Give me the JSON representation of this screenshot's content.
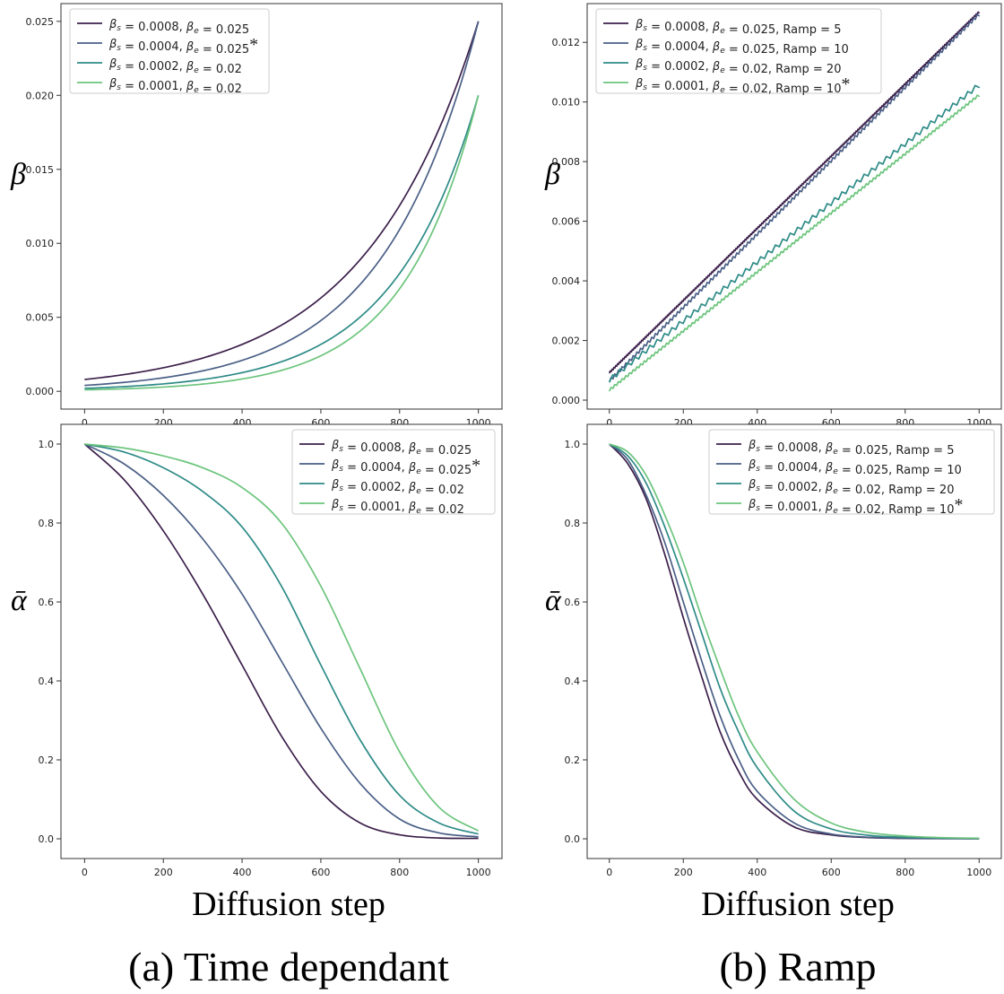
{
  "figure": {
    "xlabel_left": "Diffusion step",
    "xlabel_right": "Diffusion step",
    "caption_left": "(a) Time dependant",
    "caption_right": "(b) Ramp"
  },
  "chart_data": [
    {
      "id": "time-dependant-beta",
      "type": "line",
      "ylabel": "β",
      "xlim": [
        -60,
        1060
      ],
      "ylim": [
        -0.0012,
        0.0262
      ],
      "xticks": [
        0,
        200,
        400,
        600,
        800,
        1000
      ],
      "yticks": [
        0.0,
        0.005,
        0.01,
        0.015,
        0.02,
        0.025
      ],
      "ytick_labels": [
        "0.000",
        "0.005",
        "0.010",
        "0.015",
        "0.020",
        "0.025"
      ],
      "legend_position": "top-left",
      "legend_star_index": 1,
      "legend_star": "*",
      "formula": "beta_s * (beta_e / beta_s)^(t/1000)",
      "series": [
        {
          "name": "βs = 0.0008, βe = 0.025",
          "label": {
            "s": "0.0008",
            "e": "0.025",
            "ramp": ""
          },
          "color": "#3b1f4a",
          "x": [
            0,
            100,
            200,
            300,
            400,
            500,
            600,
            700,
            800,
            900,
            1000
          ],
          "y": [
            0.0008,
            0.00112,
            0.00157,
            0.0022,
            0.00313,
            0.00442,
            0.00624,
            0.00882,
            0.01246,
            0.01765,
            0.025
          ]
        },
        {
          "name": "βs = 0.0004, βe = 0.025",
          "label": {
            "s": "0.0004",
            "e": "0.025",
            "ramp": ""
          },
          "color": "#4a5f86",
          "x": [
            0,
            100,
            200,
            300,
            400,
            500,
            600,
            700,
            800,
            900,
            1000
          ],
          "y": [
            0.0004,
            0.00061,
            0.00091,
            0.00138,
            0.0021,
            0.00316,
            0.00478,
            0.0072,
            0.01088,
            0.01646,
            0.025
          ]
        },
        {
          "name": "βs = 0.0002, βe = 0.02",
          "label": {
            "s": "0.0002",
            "e": "0.02",
            "ramp": ""
          },
          "color": "#2e8b87",
          "x": [
            0,
            100,
            200,
            300,
            400,
            500,
            600,
            700,
            800,
            900,
            1000
          ],
          "y": [
            0.0002,
            0.00032,
            0.0005,
            0.0008,
            0.00126,
            0.002,
            0.00317,
            0.00503,
            0.00796,
            0.01261,
            0.02
          ]
        },
        {
          "name": "βs = 0.0001, βe = 0.02",
          "label": {
            "s": "0.0001",
            "e": "0.02",
            "ramp": ""
          },
          "color": "#6cc47c",
          "x": [
            0,
            100,
            200,
            300,
            400,
            500,
            600,
            700,
            800,
            900,
            1000
          ],
          "y": [
            0.0001,
            0.00017,
            0.00029,
            0.0005,
            0.00083,
            0.00141,
            0.00241,
            0.00408,
            0.00693,
            0.01178,
            0.02
          ]
        }
      ]
    },
    {
      "id": "ramp-beta",
      "type": "line",
      "ylabel": "β",
      "xlim": [
        -60,
        1060
      ],
      "ylim": [
        -0.0003,
        0.0133
      ],
      "xticks": [
        0,
        200,
        400,
        600,
        800,
        1000
      ],
      "yticks": [
        0.0,
        0.002,
        0.004,
        0.006,
        0.008,
        0.01,
        0.012
      ],
      "ytick_labels": [
        "0.000",
        "0.002",
        "0.004",
        "0.006",
        "0.008",
        "0.010",
        "0.012"
      ],
      "legend_position": "top-left",
      "legend_star_index": 3,
      "legend_star": "*",
      "formula": "staircase ramp from beta_s upward; steps every Ramp diffusion steps",
      "series": [
        {
          "name": "βs = 0.0008, βe = 0.025, Ramp = 5",
          "label": {
            "s": "0.0008",
            "e": "0.025",
            "ramp": "Ramp = 5"
          },
          "color": "#3b1f4a",
          "x": [
            0,
            1000
          ],
          "y": [
            0.0009,
            0.013
          ],
          "ramp": 5
        },
        {
          "name": "βs = 0.0004, βe = 0.025, Ramp = 10",
          "label": {
            "s": "0.0004",
            "e": "0.025",
            "ramp": "Ramp = 10"
          },
          "color": "#4a5f86",
          "x": [
            0,
            1000
          ],
          "y": [
            0.0006,
            0.0129
          ],
          "ramp": 10
        },
        {
          "name": "βs = 0.0002, βe = 0.02, Ramp = 20",
          "label": {
            "s": "0.0002",
            "e": "0.02",
            "ramp": "Ramp = 20"
          },
          "color": "#2e8b87",
          "x": [
            0,
            1000
          ],
          "y": [
            0.0006,
            0.0105
          ],
          "ramp": 20
        },
        {
          "name": "βs = 0.0001, βe = 0.02, Ramp = 10",
          "label": {
            "s": "0.0001",
            "e": "0.02",
            "ramp": "Ramp = 10"
          },
          "color": "#6cc47c",
          "x": [
            0,
            1000
          ],
          "y": [
            0.0003,
            0.0102
          ],
          "ramp": 10
        }
      ]
    },
    {
      "id": "time-dependant-alpha",
      "type": "line",
      "ylabel": "ᾱ",
      "xlim": [
        -60,
        1060
      ],
      "ylim": [
        -0.05,
        1.05
      ],
      "xticks": [
        0,
        200,
        400,
        600,
        800,
        1000
      ],
      "yticks": [
        0.0,
        0.2,
        0.4,
        0.6,
        0.8,
        1.0
      ],
      "ytick_labels": [
        "0.0",
        "0.2",
        "0.4",
        "0.6",
        "0.8",
        "1.0"
      ],
      "legend_position": "top-right",
      "legend_star_index": 1,
      "legend_star": "*",
      "series": [
        {
          "name": "βs = 0.0008, βe = 0.025",
          "label": {
            "s": "0.0008",
            "e": "0.025",
            "ramp": ""
          },
          "color": "#3b1f4a",
          "x": [
            0,
            100,
            200,
            300,
            400,
            500,
            600,
            700,
            800,
            900,
            1000
          ],
          "y": [
            1.0,
            0.91,
            0.78,
            0.62,
            0.44,
            0.26,
            0.12,
            0.04,
            0.01,
            0.002,
            0.001
          ]
        },
        {
          "name": "βs = 0.0004, βe = 0.025",
          "label": {
            "s": "0.0004",
            "e": "0.025",
            "ramp": ""
          },
          "color": "#4a5f86",
          "x": [
            0,
            100,
            200,
            300,
            400,
            500,
            600,
            700,
            800,
            900,
            1000
          ],
          "y": [
            1.0,
            0.95,
            0.87,
            0.76,
            0.62,
            0.45,
            0.28,
            0.14,
            0.05,
            0.015,
            0.005
          ]
        },
        {
          "name": "βs = 0.0002, βe = 0.02",
          "label": {
            "s": "0.0002",
            "e": "0.02",
            "ramp": ""
          },
          "color": "#2e8b87",
          "x": [
            0,
            100,
            200,
            300,
            400,
            500,
            600,
            700,
            800,
            900,
            1000
          ],
          "y": [
            1.0,
            0.98,
            0.94,
            0.88,
            0.79,
            0.64,
            0.44,
            0.25,
            0.11,
            0.04,
            0.012
          ]
        },
        {
          "name": "βs = 0.0001, βe = 0.02",
          "label": {
            "s": "0.0001",
            "e": "0.02",
            "ramp": ""
          },
          "color": "#6cc47c",
          "x": [
            0,
            100,
            200,
            300,
            400,
            500,
            600,
            700,
            800,
            900,
            1000
          ],
          "y": [
            1.0,
            0.99,
            0.97,
            0.94,
            0.89,
            0.8,
            0.64,
            0.43,
            0.22,
            0.08,
            0.02
          ]
        }
      ]
    },
    {
      "id": "ramp-alpha",
      "type": "line",
      "ylabel": "ᾱ",
      "xlim": [
        -60,
        1060
      ],
      "ylim": [
        -0.05,
        1.05
      ],
      "xticks": [
        0,
        200,
        400,
        600,
        800,
        1000
      ],
      "yticks": [
        0.0,
        0.2,
        0.4,
        0.6,
        0.8,
        1.0
      ],
      "ytick_labels": [
        "0.0",
        "0.2",
        "0.4",
        "0.6",
        "0.8",
        "1.0"
      ],
      "legend_position": "top-right",
      "legend_star_index": 3,
      "legend_star": "*",
      "series": [
        {
          "name": "βs = 0.0008, βe = 0.025, Ramp = 5",
          "label": {
            "s": "0.0008",
            "e": "0.025",
            "ramp": "Ramp = 5"
          },
          "color": "#3b1f4a",
          "x": [
            0,
            50,
            100,
            150,
            200,
            250,
            300,
            350,
            400,
            500,
            600,
            700,
            800,
            900,
            1000
          ],
          "y": [
            1.0,
            0.95,
            0.86,
            0.72,
            0.56,
            0.41,
            0.27,
            0.17,
            0.1,
            0.03,
            0.01,
            0.003,
            0.001,
            0.0005,
            0.0002
          ]
        },
        {
          "name": "βs = 0.0004, βe = 0.025, Ramp = 10",
          "label": {
            "s": "0.0004",
            "e": "0.025",
            "ramp": "Ramp = 10"
          },
          "color": "#4a5f86",
          "x": [
            0,
            50,
            100,
            150,
            200,
            250,
            300,
            350,
            400,
            500,
            600,
            700,
            800,
            900,
            1000
          ],
          "y": [
            1.0,
            0.96,
            0.87,
            0.75,
            0.6,
            0.45,
            0.31,
            0.2,
            0.12,
            0.04,
            0.012,
            0.004,
            0.0015,
            0.0006,
            0.0003
          ]
        },
        {
          "name": "βs = 0.0002, βe = 0.02, Ramp = 20",
          "label": {
            "s": "0.0002",
            "e": "0.02",
            "ramp": "Ramp = 20"
          },
          "color": "#2e8b87",
          "x": [
            0,
            50,
            100,
            150,
            200,
            250,
            300,
            350,
            400,
            500,
            600,
            700,
            800,
            900,
            1000
          ],
          "y": [
            1.0,
            0.97,
            0.9,
            0.79,
            0.66,
            0.52,
            0.38,
            0.27,
            0.18,
            0.07,
            0.025,
            0.009,
            0.004,
            0.002,
            0.001
          ]
        },
        {
          "name": "βs = 0.0001, βe = 0.02, Ramp = 10",
          "label": {
            "s": "0.0001",
            "e": "0.02",
            "ramp": "Ramp = 10"
          },
          "color": "#6cc47c",
          "x": [
            0,
            50,
            100,
            150,
            200,
            250,
            300,
            350,
            400,
            500,
            600,
            700,
            800,
            900,
            1000
          ],
          "y": [
            1.0,
            0.98,
            0.92,
            0.82,
            0.7,
            0.56,
            0.43,
            0.31,
            0.22,
            0.1,
            0.04,
            0.016,
            0.007,
            0.003,
            0.0015
          ]
        }
      ]
    }
  ]
}
